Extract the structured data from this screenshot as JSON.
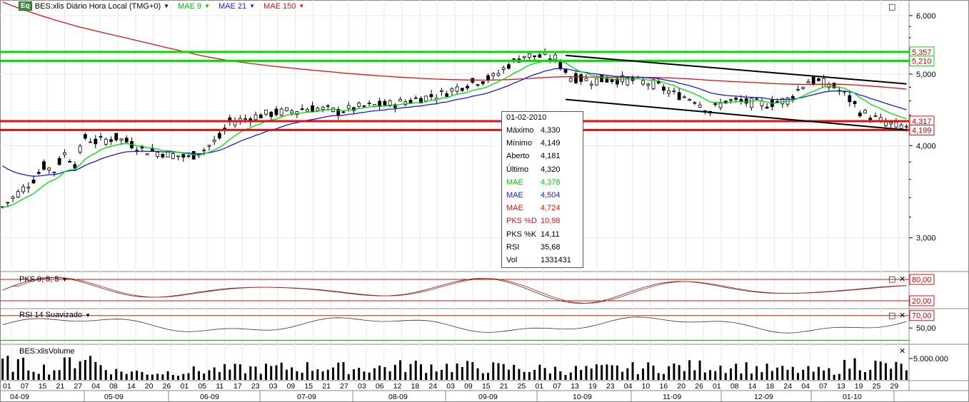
{
  "header": {
    "logo": "Eq",
    "title": "BES:xlis Diário Hora Local (TMG+0)",
    "ind1": "MAE 9",
    "ind2": "MAE 21",
    "ind3": "MAE 150"
  },
  "colors": {
    "mae9": "#00dd00",
    "mae21": "#1a1ae6",
    "mae150": "#dd1111",
    "hline_green": "#00dd00",
    "hline_red": "#dd1111"
  },
  "price_axis": {
    "ticks": [
      "6,000",
      "5,000",
      "4,000",
      "3,000"
    ],
    "labels": {
      "green_upper": "5,357",
      "green_lower": "5,210",
      "red_upper": "4,317",
      "red_lower": "4,199"
    }
  },
  "pks_panel": {
    "title": "PKS 9; 5; 5",
    "upper": "80,00",
    "lower": "20,00"
  },
  "rsi_panel": {
    "title": "RSI 14 Suavizado",
    "upper": "70,00",
    "mid": "50,00"
  },
  "volume_panel": {
    "title": "BES:xlisVolume",
    "tick": "5.000.000"
  },
  "tooltip": {
    "date": "01-02-2010",
    "rows": [
      {
        "label": "Máximo",
        "value": "4,330",
        "color": "#000000"
      },
      {
        "label": "Mínimo",
        "value": "4,149",
        "color": "#000000"
      },
      {
        "label": "Aberto",
        "value": "4,181",
        "color": "#000000"
      },
      {
        "label": "Último",
        "value": "4,320",
        "color": "#000000"
      },
      {
        "label": "MAE",
        "value": "4,378",
        "color": "#00cc00"
      },
      {
        "label": "MAE",
        "value": "4,504",
        "color": "#1a1ae6"
      },
      {
        "label": "MAE",
        "value": "4,724",
        "color": "#dd1111"
      },
      {
        "label": "PKS %D",
        "value": "10,98",
        "color": "#dd1111"
      },
      {
        "label": "PKS %K",
        "value": "14,11",
        "color": "#000000"
      },
      {
        "label": "RSI",
        "value": "35,68",
        "color": "#000000"
      },
      {
        "label": "Vol",
        "value": "1331431",
        "color": "#000000"
      }
    ]
  },
  "chart_data": {
    "type": "candlestick",
    "y_range": [
      2.7,
      6.3
    ],
    "log_scale": true,
    "horizontal_levels": [
      5.357,
      5.21,
      4.317,
      4.199
    ],
    "days": [
      "01",
      "07",
      "15",
      "21",
      "27",
      "04",
      "08",
      "14",
      "20",
      "26",
      "01",
      "05",
      "11",
      "17",
      "23",
      "03",
      "09",
      "15",
      "21",
      "27",
      "03",
      "06",
      "12",
      "18",
      "24",
      "03",
      "09",
      "15",
      "21",
      "25",
      "01",
      "07",
      "13",
      "19",
      "23",
      "04",
      "10",
      "16",
      "20",
      "26",
      "01",
      "08",
      "14",
      "18",
      "24",
      "04",
      "07",
      "13",
      "19",
      "25",
      "29"
    ],
    "months": [
      "04-09",
      "05-09",
      "06-09",
      "07-09",
      "08-09",
      "09-09",
      "10-09",
      "11-09",
      "12-09",
      "01-10"
    ],
    "price_anchors": [
      [
        0,
        3.3
      ],
      [
        4,
        3.5
      ],
      [
        6,
        3.6
      ],
      [
        8,
        3.75
      ],
      [
        10,
        3.7
      ],
      [
        12,
        3.9
      ],
      [
        14,
        3.78
      ],
      [
        16,
        4.1
      ],
      [
        18,
        4.05
      ],
      [
        22,
        4.1
      ],
      [
        24,
        4.05
      ],
      [
        27,
        3.95
      ],
      [
        32,
        3.9
      ],
      [
        36,
        3.85
      ],
      [
        39,
        3.95
      ],
      [
        42,
        4.1
      ],
      [
        44,
        4.3
      ],
      [
        50,
        4.4
      ],
      [
        55,
        4.45
      ],
      [
        60,
        4.5
      ],
      [
        65,
        4.45
      ],
      [
        70,
        4.52
      ],
      [
        75,
        4.55
      ],
      [
        80,
        4.62
      ],
      [
        85,
        4.7
      ],
      [
        90,
        4.85
      ],
      [
        95,
        4.95
      ],
      [
        98,
        5.15
      ],
      [
        101,
        5.3
      ],
      [
        104,
        5.28
      ],
      [
        107,
        5.25
      ],
      [
        110,
        4.95
      ],
      [
        114,
        4.9
      ],
      [
        118,
        4.92
      ],
      [
        122,
        4.9
      ],
      [
        126,
        4.85
      ],
      [
        130,
        4.7
      ],
      [
        134,
        4.62
      ],
      [
        137,
        4.45
      ],
      [
        140,
        4.6
      ],
      [
        144,
        4.58
      ],
      [
        148,
        4.55
      ],
      [
        152,
        4.62
      ],
      [
        156,
        4.9
      ],
      [
        160,
        4.85
      ],
      [
        163,
        4.7
      ],
      [
        166,
        4.45
      ],
      [
        170,
        4.32
      ],
      [
        173,
        4.25
      ]
    ],
    "volume_anchors": [
      [
        0,
        0.6
      ],
      [
        5,
        0.5
      ],
      [
        10,
        0.35
      ],
      [
        16,
        0.9
      ],
      [
        18,
        0.6
      ],
      [
        22,
        0.3
      ],
      [
        30,
        0.25
      ],
      [
        40,
        0.35
      ],
      [
        50,
        0.4
      ],
      [
        60,
        0.45
      ],
      [
        70,
        0.4
      ],
      [
        80,
        0.5
      ],
      [
        90,
        0.45
      ],
      [
        100,
        0.4
      ],
      [
        110,
        0.35
      ],
      [
        120,
        0.4
      ],
      [
        130,
        0.45
      ],
      [
        140,
        0.5
      ],
      [
        150,
        0.35
      ],
      [
        160,
        0.3
      ],
      [
        165,
        0.6
      ],
      [
        173,
        0.45
      ]
    ],
    "trendlines": [
      {
        "color": "#000000",
        "from": [
          109,
          5.3
        ],
        "to": [
          175,
          4.85
        ]
      },
      {
        "color": "#000000",
        "from": [
          109,
          4.62
        ],
        "to": [
          175,
          4.2
        ]
      }
    ]
  }
}
